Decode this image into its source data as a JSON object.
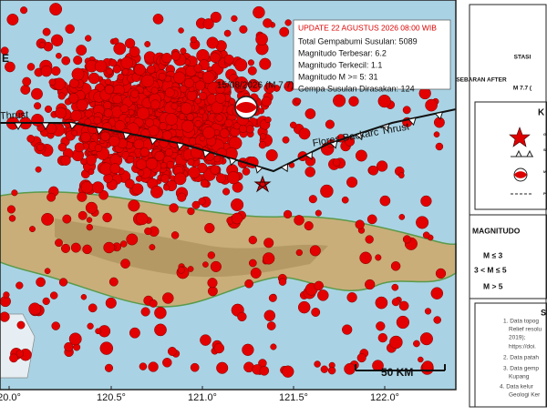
{
  "map": {
    "corner_label": "E",
    "update_box": {
      "title": "UPDATE 22 AGUSTUS 2026 08:00 WIB",
      "lines": [
        "Total Gempabumi Susulan: 5089",
        "Magnitudo Terbesar: 6.2",
        "Magnitudo Terkecil: 1.1",
        "Magnitudo M >= 5: 31",
        "Gempa Susulan Dirasakan: 124"
      ]
    },
    "mainshock_label": "15/08/2026 (M 7.7)",
    "faults": [
      "Thrust",
      "Flores Backarc Thrust"
    ],
    "scale_label": "50 KM",
    "x_axis_labels": [
      "20.0°",
      "120.5°",
      "121.0°",
      "121.5°",
      "122.0°"
    ]
  },
  "legend_panel": {
    "header": [
      "STASI",
      "SEBARAN AFTER",
      "M 7.7 ("
    ],
    "key_title": "K",
    "key_items": [
      "G",
      "S",
      "M",
      "P"
    ],
    "magnitude_title": "MAGNITUDO",
    "magnitude_rows": [
      "M ≤ 3",
      "3 < M ≤ 5",
      "M > 5"
    ],
    "source_title": "S",
    "source_lines": [
      "1. Data topog",
      "Relief resolu",
      "2019);",
      "https://doi.",
      "2. Data patah",
      "3. Data gemp",
      "Kupang",
      "4. Data kelur",
      "Geologi Ker"
    ]
  }
}
